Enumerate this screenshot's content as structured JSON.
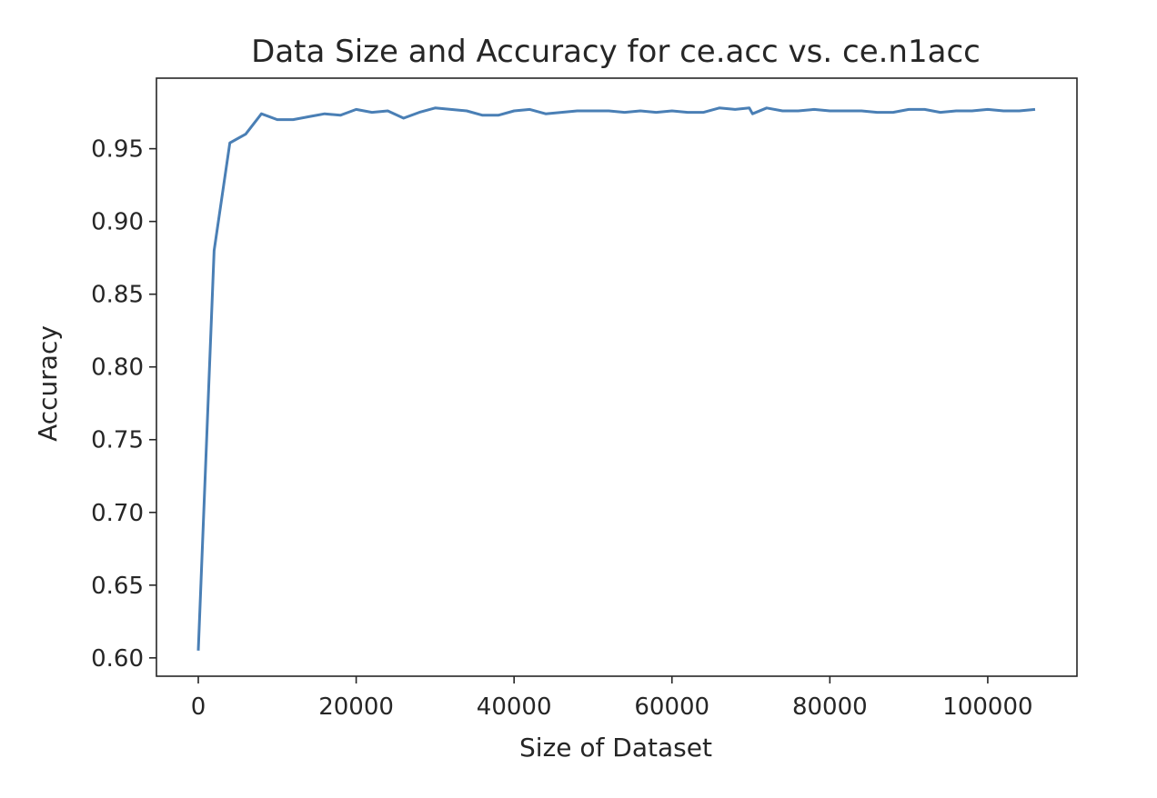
{
  "chart_data": {
    "type": "line",
    "title": "Data Size and Accuracy for ce.acc vs. ce.n1acc",
    "xlabel": "Size of Dataset",
    "ylabel": "Accuracy",
    "xlim": [
      -5300,
      111300
    ],
    "ylim": [
      0.5874,
      0.9985
    ],
    "xticks": [
      0,
      20000,
      40000,
      60000,
      80000,
      100000
    ],
    "xtick_labels": [
      "0",
      "20000",
      "40000",
      "60000",
      "80000",
      "100000"
    ],
    "yticks": [
      0.6,
      0.65,
      0.7,
      0.75,
      0.8,
      0.85,
      0.9,
      0.95
    ],
    "ytick_labels": [
      "0.60",
      "0.65",
      "0.70",
      "0.75",
      "0.80",
      "0.85",
      "0.90",
      "0.95"
    ],
    "grid": false,
    "color": "#4a7fb5",
    "series": [
      {
        "x": [
          0,
          2000,
          4000,
          6000,
          8000,
          10000,
          12000,
          14000,
          16000,
          18000,
          20000,
          22000,
          24000,
          26000,
          28000,
          30000,
          32000,
          34000,
          36000,
          38000,
          40000,
          42000,
          44000,
          46000,
          48000,
          50000,
          52000,
          54000,
          56000,
          58000,
          60000,
          62000,
          64000,
          66000,
          68000,
          69800,
          70200,
          72000,
          74000,
          76000,
          78000,
          80000,
          82000,
          84000,
          86000,
          88000,
          90000,
          92000,
          94000,
          96000,
          98000,
          100000,
          102000,
          104000,
          106000
        ],
        "y": [
          0.605,
          0.88,
          0.954,
          0.96,
          0.974,
          0.97,
          0.97,
          0.972,
          0.974,
          0.973,
          0.977,
          0.975,
          0.976,
          0.971,
          0.975,
          0.978,
          0.977,
          0.976,
          0.973,
          0.973,
          0.976,
          0.977,
          0.974,
          0.975,
          0.976,
          0.976,
          0.976,
          0.975,
          0.976,
          0.975,
          0.976,
          0.975,
          0.975,
          0.978,
          0.977,
          0.978,
          0.974,
          0.978,
          0.976,
          0.976,
          0.977,
          0.976,
          0.976,
          0.976,
          0.975,
          0.975,
          0.977,
          0.977,
          0.975,
          0.976,
          0.976,
          0.977,
          0.976,
          0.976,
          0.977
        ]
      }
    ]
  }
}
